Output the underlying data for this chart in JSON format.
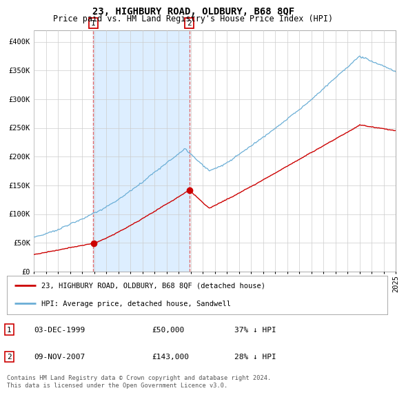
{
  "title": "23, HIGHBURY ROAD, OLDBURY, B68 8QF",
  "subtitle": "Price paid vs. HM Land Registry's House Price Index (HPI)",
  "ylim": [
    0,
    420000
  ],
  "yticks": [
    0,
    50000,
    100000,
    150000,
    200000,
    250000,
    300000,
    350000,
    400000
  ],
  "ytick_labels": [
    "£0",
    "£50K",
    "£100K",
    "£150K",
    "£200K",
    "£250K",
    "£300K",
    "£350K",
    "£400K"
  ],
  "x_start_year": 1995,
  "x_end_year": 2025,
  "sale1_year": 1999.92,
  "sale1_price": 50000,
  "sale1_label": "1",
  "sale2_year": 2007.87,
  "sale2_price": 143000,
  "sale2_label": "2",
  "hpi_line_color": "#6aaed6",
  "price_line_color": "#cc0000",
  "vline_color": "#e06060",
  "shade_color": "#ddeeff",
  "background_color": "#ffffff",
  "grid_color": "#cccccc",
  "legend_line1": "23, HIGHBURY ROAD, OLDBURY, B68 8QF (detached house)",
  "legend_line2": "HPI: Average price, detached house, Sandwell",
  "table_row1": [
    "1",
    "03-DEC-1999",
    "£50,000",
    "37% ↓ HPI"
  ],
  "table_row2": [
    "2",
    "09-NOV-2007",
    "£143,000",
    "28% ↓ HPI"
  ],
  "footnote": "Contains HM Land Registry data © Crown copyright and database right 2024.\nThis data is licensed under the Open Government Licence v3.0.",
  "title_fontsize": 10,
  "subtitle_fontsize": 8.5,
  "tick_fontsize": 7.5,
  "label_box_color": "#cc0000"
}
